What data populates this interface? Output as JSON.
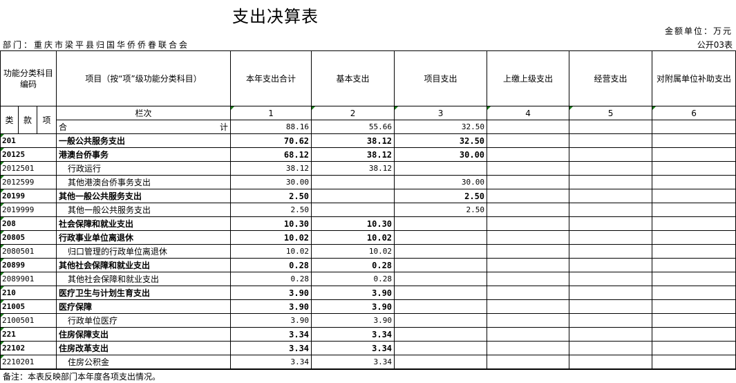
{
  "title": "支出决算表",
  "unit": "金额单位：万元",
  "department": "部门：重庆市梁平县归国华侨侨眷联合会",
  "table_no": "公开03表",
  "headers": {
    "code": "功能分类科目编码",
    "item": "项目（按“项”级功能分类科目）",
    "cols": [
      "本年支出合计",
      "基本支出",
      "项目支出",
      "上缴上级支出",
      "经营支出",
      "对附属单位补助支出"
    ]
  },
  "subheaders": {
    "lei": "类",
    "kuan": "款",
    "xiang": "项",
    "lanci": "栏次",
    "nums": [
      "1",
      "2",
      "3",
      "4",
      "5",
      "6"
    ]
  },
  "total": {
    "he": "合",
    "ji": "计",
    "values": [
      "88.16",
      "55.66",
      "32.50",
      "",
      "",
      ""
    ]
  },
  "rows": [
    {
      "code": "201",
      "name": "一般公共服务支出",
      "bold": true,
      "values": [
        "70.62",
        "38.12",
        "32.50"
      ]
    },
    {
      "code": "20125",
      "name": "港澳台侨事务",
      "bold": true,
      "values": [
        "68.12",
        "38.12",
        "30.00"
      ]
    },
    {
      "code": "2012501",
      "name": "行政运行",
      "bold": false,
      "values": [
        "38.12",
        "38.12",
        ""
      ]
    },
    {
      "code": "2012599",
      "name": "其他港澳台侨事务支出",
      "bold": false,
      "values": [
        "30.00",
        "",
        "30.00"
      ]
    },
    {
      "code": "20199",
      "name": "其他一般公共服务支出",
      "bold": true,
      "values": [
        "2.50",
        "",
        "2.50"
      ]
    },
    {
      "code": "2019999",
      "name": "其他一般公共服务支出",
      "bold": false,
      "values": [
        "2.50",
        "",
        "2.50"
      ]
    },
    {
      "code": "208",
      "name": "社会保障和就业支出",
      "bold": true,
      "values": [
        "10.30",
        "10.30",
        ""
      ]
    },
    {
      "code": "20805",
      "name": "行政事业单位离退休",
      "bold": true,
      "values": [
        "10.02",
        "10.02",
        ""
      ]
    },
    {
      "code": "2080501",
      "name": "归口管理的行政单位离退休",
      "bold": false,
      "values": [
        "10.02",
        "10.02",
        ""
      ]
    },
    {
      "code": "20899",
      "name": "其他社会保障和就业支出",
      "bold": true,
      "values": [
        "0.28",
        "0.28",
        ""
      ]
    },
    {
      "code": "2089901",
      "name": "其他社会保障和就业支出",
      "bold": false,
      "values": [
        "0.28",
        "0.28",
        ""
      ]
    },
    {
      "code": "210",
      "name": "医疗卫生与计划生育支出",
      "bold": true,
      "values": [
        "3.90",
        "3.90",
        ""
      ]
    },
    {
      "code": "21005",
      "name": "医疗保障",
      "bold": true,
      "values": [
        "3.90",
        "3.90",
        ""
      ]
    },
    {
      "code": "2100501",
      "name": "行政单位医疗",
      "bold": false,
      "values": [
        "3.90",
        "3.90",
        ""
      ]
    },
    {
      "code": "221",
      "name": "住房保障支出",
      "bold": true,
      "values": [
        "3.34",
        "3.34",
        ""
      ]
    },
    {
      "code": "22102",
      "name": "住房改革支出",
      "bold": true,
      "values": [
        "3.34",
        "3.34",
        ""
      ]
    },
    {
      "code": "2210201",
      "name": "住房公积金",
      "bold": false,
      "values": [
        "3.34",
        "3.34",
        ""
      ]
    }
  ],
  "footnote": "备注：本表反映部门本年度各项支出情况。",
  "colors": {
    "marker": "#1a7a1a"
  }
}
